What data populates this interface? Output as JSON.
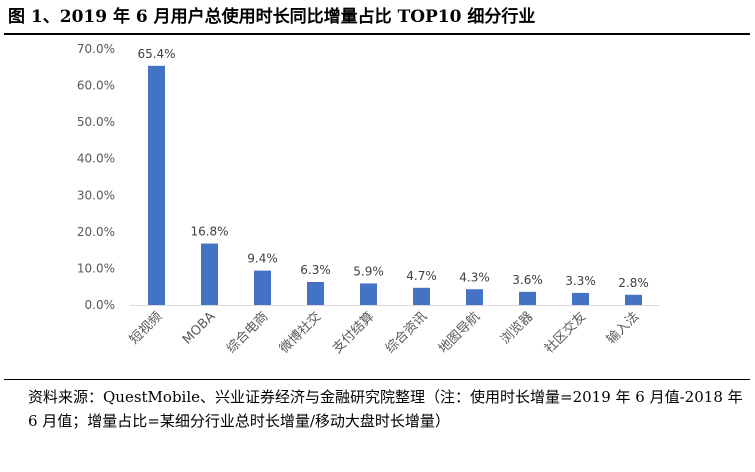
{
  "title": "图 1、2019 年 6 月用户总使用时长同比增量占比 TOP10 细分行业",
  "source": "资料来源：QuestMobile、兴业证券经济与金融研究院整理（注：使用时长增量=2019 年 6 月值-2018 年 6 月值；增量占比=某细分行业总时长增量/移动大盘时长增量）",
  "chart_data": {
    "type": "bar",
    "categories": [
      "短视频",
      "MOBA",
      "综合电商",
      "微博社交",
      "支付结算",
      "综合资讯",
      "地图导航",
      "浏览器",
      "社区交友",
      "输入法"
    ],
    "values": [
      65.4,
      16.8,
      9.4,
      6.3,
      5.9,
      4.7,
      4.3,
      3.6,
      3.3,
      2.8
    ],
    "data_labels": [
      "65.4%",
      "16.8%",
      "9.4%",
      "6.3%",
      "5.9%",
      "4.7%",
      "4.3%",
      "3.6%",
      "3.3%",
      "2.8%"
    ],
    "yticks": [
      "0.0%",
      "10.0%",
      "20.0%",
      "30.0%",
      "40.0%",
      "50.0%",
      "60.0%",
      "70.0%"
    ],
    "ylim": [
      0,
      70
    ],
    "grid": false,
    "legend": "none",
    "bar_color": "#4472C4"
  }
}
